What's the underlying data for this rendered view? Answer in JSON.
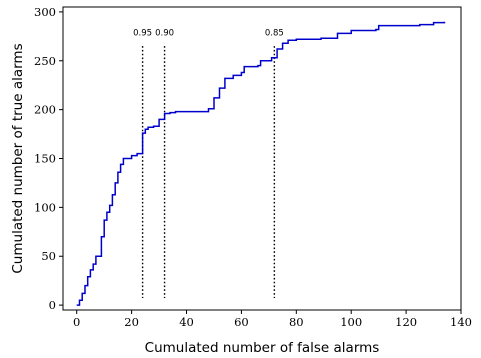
{
  "chart_data": {
    "type": "line",
    "title": "",
    "xlabel": "Cumulated number of false alarms",
    "ylabel": "Cumulated number of true alarms",
    "xlim": [
      -5,
      140
    ],
    "ylim": [
      -5,
      305
    ],
    "xticks": [
      "0",
      "20",
      "40",
      "60",
      "80",
      "100",
      "120",
      "140"
    ],
    "yticks": [
      "0",
      "50",
      "100",
      "150",
      "200",
      "250",
      "300"
    ],
    "grid": false,
    "line_color": "#0000cc",
    "series": [
      {
        "steps": [
          [
            0,
            0
          ],
          [
            1,
            5
          ],
          [
            2,
            12
          ],
          [
            3,
            20
          ],
          [
            4,
            29
          ],
          [
            5,
            36
          ],
          [
            6,
            42
          ],
          [
            7,
            50
          ],
          [
            9,
            70
          ],
          [
            10,
            87
          ],
          [
            11,
            95
          ],
          [
            12,
            102
          ],
          [
            13,
            113
          ],
          [
            14,
            125
          ],
          [
            15,
            136
          ],
          [
            16,
            144
          ],
          [
            17,
            150
          ],
          [
            20,
            153
          ],
          [
            22,
            155
          ],
          [
            24,
            176
          ],
          [
            25,
            180
          ],
          [
            26,
            182
          ],
          [
            28,
            183
          ],
          [
            30,
            190
          ],
          [
            32,
            196
          ],
          [
            34,
            197
          ],
          [
            36,
            198
          ],
          [
            46,
            198
          ],
          [
            48,
            201
          ],
          [
            50,
            212
          ],
          [
            52,
            222
          ],
          [
            54,
            232
          ],
          [
            57,
            235
          ],
          [
            60,
            238
          ],
          [
            61,
            244
          ],
          [
            66,
            245
          ],
          [
            67,
            250
          ],
          [
            71,
            253
          ],
          [
            73,
            262
          ],
          [
            75,
            268
          ],
          [
            77,
            271
          ],
          [
            80,
            272
          ],
          [
            89,
            273
          ],
          [
            95,
            278
          ],
          [
            100,
            281
          ],
          [
            109,
            282
          ],
          [
            110,
            286
          ],
          [
            125,
            287
          ],
          [
            130,
            289
          ],
          [
            134,
            290
          ]
        ]
      }
    ],
    "thresholds": [
      {
        "x": 24,
        "label": "0.95"
      },
      {
        "x": 32,
        "label": "0.90"
      },
      {
        "x": 72,
        "label": "0.85"
      }
    ]
  }
}
